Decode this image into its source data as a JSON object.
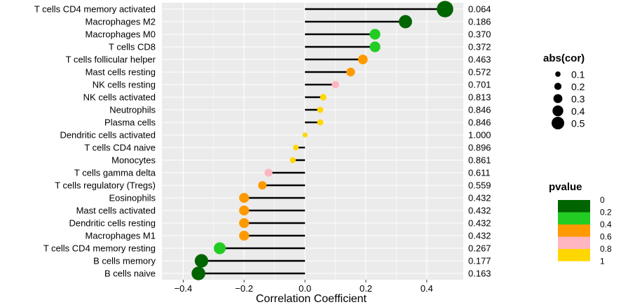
{
  "chart_data": {
    "type": "lollipop",
    "xlabel": "Correlation Coefficient",
    "xlim": [
      -0.47,
      0.52
    ],
    "xticks": [
      -0.4,
      -0.2,
      0.0,
      0.2,
      0.4
    ],
    "xtick_labels": [
      "−0.4",
      "−0.2",
      "0.0",
      "0.2",
      "0.4"
    ],
    "grid": true,
    "categories": [
      "T cells CD4 memory activated",
      "Macrophages M2",
      "Macrophages M0",
      "T cells CD8",
      "T cells follicular helper",
      "Mast cells resting",
      "NK cells resting",
      "NK cells activated",
      "Neutrophils",
      "Plasma cells",
      "Dendritic cells activated",
      "T cells CD4 naive",
      "Monocytes",
      "T cells gamma delta",
      "T cells regulatory (Tregs)",
      "Eosinophils",
      "Mast cells activated",
      "Dendritic cells resting",
      "Macrophages M1",
      "T cells CD4 memory resting",
      "B cells memory",
      "B cells naive"
    ],
    "values": [
      0.46,
      0.33,
      0.23,
      0.23,
      0.19,
      0.15,
      0.1,
      0.06,
      0.05,
      0.05,
      0.0,
      -0.03,
      -0.04,
      -0.12,
      -0.14,
      -0.2,
      -0.2,
      -0.2,
      -0.2,
      -0.28,
      -0.34,
      -0.35
    ],
    "pvalues": [
      "0.064",
      "0.186",
      "0.370",
      "0.372",
      "0.463",
      "0.572",
      "0.701",
      "0.813",
      "0.846",
      "0.846",
      "1.000",
      "0.896",
      "0.861",
      "0.611",
      "0.559",
      "0.432",
      "0.432",
      "0.432",
      "0.432",
      "0.267",
      "0.177",
      "0.163"
    ],
    "point_colors": [
      "#006400",
      "#006400",
      "#22CC22",
      "#22CC22",
      "#FF9900",
      "#FF9900",
      "#FFB6C1",
      "#FFD700",
      "#FFD700",
      "#FFD700",
      "#FFD700",
      "#FFD700",
      "#FFD700",
      "#FFB6C1",
      "#FF9900",
      "#FF9900",
      "#FF9900",
      "#FF9900",
      "#FF9900",
      "#22CC22",
      "#006400",
      "#006400"
    ],
    "size_legend": {
      "title": "abs(cor)",
      "entries": [
        "0.1",
        "0.2",
        "0.3",
        "0.4",
        "0.5"
      ],
      "values": [
        0.1,
        0.2,
        0.3,
        0.4,
        0.5
      ]
    },
    "color_legend": {
      "title": "pvalue",
      "labels": [
        "0",
        "0.2",
        "0.4",
        "0.6",
        "0.8",
        "1"
      ],
      "colors": [
        "#006400",
        "#22CC22",
        "#FF9900",
        "#FFB6C1",
        "#FFD700"
      ]
    },
    "panel_background": "#EBEBEB",
    "segment_color": "#000000"
  }
}
